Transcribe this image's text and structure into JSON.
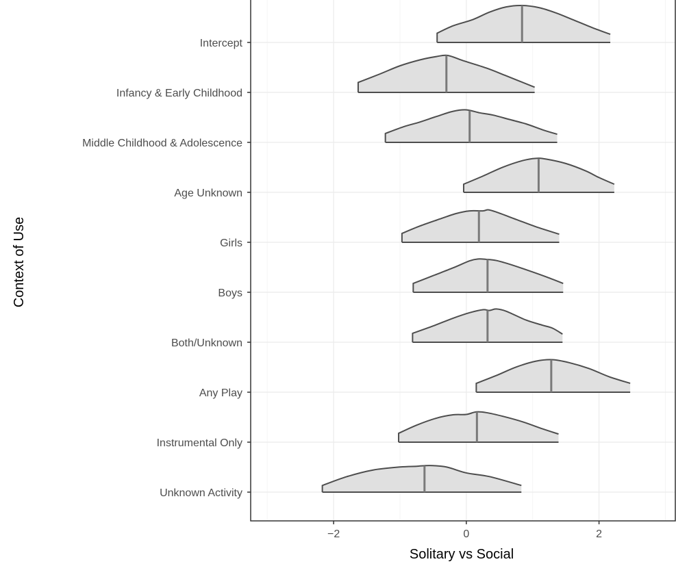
{
  "chart_data": {
    "type": "ridgeline",
    "xlabel": "Solitary vs Social",
    "ylabel": "Context of Use",
    "xlim": [
      -3.25,
      3.15
    ],
    "x_ticks": [
      -2,
      0,
      2
    ],
    "x_tick_labels": [
      "−2",
      "0",
      "2"
    ],
    "grid": true,
    "legend": "none",
    "colors": {
      "fill": "#e0e0e0",
      "stroke": "#4d4d4d",
      "median": "#7a7a7a",
      "grid_major": "#ebebeb",
      "grid_minor": "#f5f5f5",
      "frame": "#333333"
    },
    "categories": [
      "Intercept",
      "Infancy & Early Childhood",
      "Middle Childhood & Adolescence",
      "Age Unknown",
      "Girls",
      "Boys",
      "Both/Unknown",
      "Any Play",
      "Instrumental Only",
      "Unknown Activity"
    ],
    "series": [
      {
        "label": "Intercept",
        "median": 0.84,
        "density": [
          [
            -0.44,
            0.25
          ],
          [
            -0.2,
            0.45
          ],
          [
            0.1,
            0.62
          ],
          [
            0.35,
            0.82
          ],
          [
            0.6,
            0.96
          ],
          [
            0.84,
            1.0
          ],
          [
            1.1,
            0.94
          ],
          [
            1.35,
            0.8
          ],
          [
            1.6,
            0.62
          ],
          [
            1.9,
            0.4
          ],
          [
            2.17,
            0.22
          ]
        ]
      },
      {
        "label": "Infancy & Early Childhood",
        "median": -0.3,
        "density": [
          [
            -1.63,
            0.27
          ],
          [
            -1.3,
            0.5
          ],
          [
            -1.0,
            0.72
          ],
          [
            -0.7,
            0.88
          ],
          [
            -0.45,
            0.97
          ],
          [
            -0.28,
            1.0
          ],
          [
            -0.05,
            0.86
          ],
          [
            0.3,
            0.66
          ],
          [
            0.6,
            0.45
          ],
          [
            1.03,
            0.14
          ]
        ]
      },
      {
        "label": "Middle Childhood & Adolescence",
        "median": 0.05,
        "density": [
          [
            -1.22,
            0.24
          ],
          [
            -0.95,
            0.42
          ],
          [
            -0.7,
            0.55
          ],
          [
            -0.45,
            0.7
          ],
          [
            -0.2,
            0.84
          ],
          [
            0.0,
            0.88
          ],
          [
            0.2,
            0.8
          ],
          [
            0.4,
            0.74
          ],
          [
            0.65,
            0.62
          ],
          [
            0.9,
            0.5
          ],
          [
            1.15,
            0.34
          ],
          [
            1.37,
            0.22
          ]
        ]
      },
      {
        "label": "Age Unknown",
        "median": 1.09,
        "density": [
          [
            -0.04,
            0.22
          ],
          [
            0.25,
            0.44
          ],
          [
            0.55,
            0.68
          ],
          [
            0.85,
            0.86
          ],
          [
            1.05,
            0.92
          ],
          [
            1.2,
            0.9
          ],
          [
            1.5,
            0.78
          ],
          [
            1.8,
            0.58
          ],
          [
            2.0,
            0.4
          ],
          [
            2.23,
            0.22
          ]
        ]
      },
      {
        "label": "Girls",
        "median": 0.19,
        "density": [
          [
            -0.97,
            0.24
          ],
          [
            -0.7,
            0.44
          ],
          [
            -0.4,
            0.63
          ],
          [
            -0.15,
            0.78
          ],
          [
            0.05,
            0.85
          ],
          [
            0.25,
            0.85
          ],
          [
            0.33,
            0.88
          ],
          [
            0.45,
            0.82
          ],
          [
            0.75,
            0.62
          ],
          [
            1.05,
            0.42
          ],
          [
            1.4,
            0.22
          ]
        ]
      },
      {
        "label": "Boys",
        "median": 0.32,
        "density": [
          [
            -0.8,
            0.24
          ],
          [
            -0.5,
            0.45
          ],
          [
            -0.2,
            0.66
          ],
          [
            0.05,
            0.85
          ],
          [
            0.18,
            0.9
          ],
          [
            0.3,
            0.89
          ],
          [
            0.45,
            0.86
          ],
          [
            0.65,
            0.76
          ],
          [
            0.95,
            0.58
          ],
          [
            1.2,
            0.42
          ],
          [
            1.46,
            0.24
          ]
        ]
      },
      {
        "label": "Both/Unknown",
        "median": 0.32,
        "density": [
          [
            -0.81,
            0.24
          ],
          [
            -0.5,
            0.44
          ],
          [
            -0.2,
            0.65
          ],
          [
            0.05,
            0.8
          ],
          [
            0.25,
            0.88
          ],
          [
            0.35,
            0.86
          ],
          [
            0.45,
            0.9
          ],
          [
            0.6,
            0.84
          ],
          [
            0.9,
            0.6
          ],
          [
            1.15,
            0.46
          ],
          [
            1.3,
            0.38
          ],
          [
            1.45,
            0.22
          ]
        ]
      },
      {
        "label": "Any Play",
        "median": 1.28,
        "density": [
          [
            0.15,
            0.24
          ],
          [
            0.45,
            0.45
          ],
          [
            0.75,
            0.68
          ],
          [
            1.05,
            0.84
          ],
          [
            1.3,
            0.88
          ],
          [
            1.55,
            0.8
          ],
          [
            1.85,
            0.64
          ],
          [
            2.15,
            0.42
          ],
          [
            2.47,
            0.24
          ]
        ]
      },
      {
        "label": "Instrumental Only",
        "median": 0.16,
        "density": [
          [
            -1.02,
            0.24
          ],
          [
            -0.75,
            0.46
          ],
          [
            -0.45,
            0.65
          ],
          [
            -0.2,
            0.74
          ],
          [
            0.0,
            0.75
          ],
          [
            0.15,
            0.82
          ],
          [
            0.3,
            0.8
          ],
          [
            0.55,
            0.7
          ],
          [
            0.85,
            0.55
          ],
          [
            1.15,
            0.36
          ],
          [
            1.39,
            0.22
          ]
        ]
      },
      {
        "label": "Unknown Activity",
        "median": -0.63,
        "density": [
          [
            -2.17,
            0.18
          ],
          [
            -1.8,
            0.42
          ],
          [
            -1.4,
            0.6
          ],
          [
            -1.0,
            0.68
          ],
          [
            -0.75,
            0.7
          ],
          [
            -0.55,
            0.72
          ],
          [
            -0.3,
            0.68
          ],
          [
            0.0,
            0.52
          ],
          [
            0.35,
            0.42
          ],
          [
            0.83,
            0.18
          ]
        ]
      }
    ]
  }
}
